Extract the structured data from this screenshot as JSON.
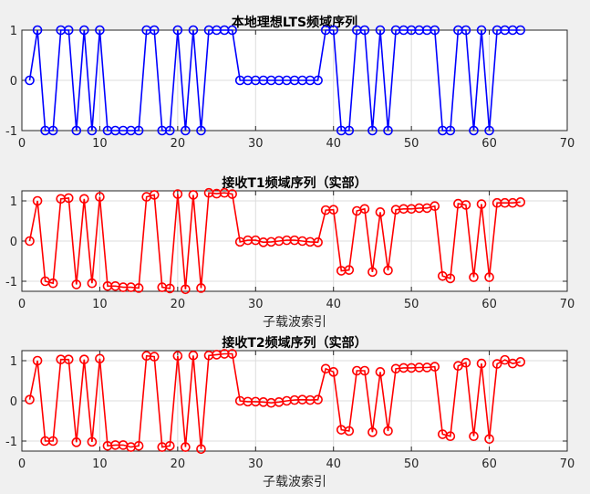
{
  "chart_data": [
    {
      "type": "line",
      "title": "本地理想LTS频域序列",
      "xlabel": "",
      "ylabel": "",
      "xlim": [
        0,
        70
      ],
      "ylim": [
        -1,
        1
      ],
      "xticks": [
        0,
        10,
        20,
        30,
        40,
        50,
        60,
        70
      ],
      "yticks": [
        -1,
        0,
        1
      ],
      "grid": true,
      "marker": "circle",
      "color": "#0000ff",
      "x": [
        1,
        2,
        3,
        4,
        5,
        6,
        7,
        8,
        9,
        10,
        11,
        12,
        13,
        14,
        15,
        16,
        17,
        18,
        19,
        20,
        21,
        22,
        23,
        24,
        25,
        26,
        27,
        28,
        29,
        30,
        31,
        32,
        33,
        34,
        35,
        36,
        37,
        38,
        39,
        40,
        41,
        42,
        43,
        44,
        45,
        46,
        47,
        48,
        49,
        50,
        51,
        52,
        53,
        54,
        55,
        56,
        57,
        58,
        59,
        60,
        61,
        62,
        63,
        64
      ],
      "y": [
        0,
        1,
        -1,
        -1,
        1,
        1,
        -1,
        1,
        -1,
        1,
        -1,
        -1,
        -1,
        -1,
        -1,
        1,
        1,
        -1,
        -1,
        1,
        -1,
        1,
        -1,
        1,
        1,
        1,
        1,
        0,
        0,
        0,
        0,
        0,
        0,
        0,
        0,
        0,
        0,
        0,
        1,
        1,
        -1,
        -1,
        1,
        1,
        -1,
        1,
        -1,
        1,
        1,
        1,
        1,
        1,
        1,
        -1,
        -1,
        1,
        1,
        -1,
        1,
        -1,
        1,
        1,
        1,
        1
      ]
    },
    {
      "type": "line",
      "title": "接收T1频域序列（实部）",
      "xlabel": "子载波索引",
      "ylabel": "",
      "xlim": [
        0,
        70
      ],
      "ylim": [
        -1.25,
        1.25
      ],
      "xticks": [
        0,
        10,
        20,
        30,
        40,
        50,
        60,
        70
      ],
      "yticks": [
        -1,
        0,
        1
      ],
      "grid": true,
      "marker": "circle",
      "color": "#ff0000",
      "x": [
        1,
        2,
        3,
        4,
        5,
        6,
        7,
        8,
        9,
        10,
        11,
        12,
        13,
        14,
        15,
        16,
        17,
        18,
        19,
        20,
        21,
        22,
        23,
        24,
        25,
        26,
        27,
        28,
        29,
        30,
        31,
        32,
        33,
        34,
        35,
        36,
        37,
        38,
        39,
        40,
        41,
        42,
        43,
        44,
        45,
        46,
        47,
        48,
        49,
        50,
        51,
        52,
        53,
        54,
        55,
        56,
        57,
        58,
        59,
        60,
        61,
        62,
        63,
        64
      ],
      "y": [
        0,
        1.0,
        -1.0,
        -1.05,
        1.05,
        1.07,
        -1.08,
        1.05,
        -1.05,
        1.1,
        -1.12,
        -1.12,
        -1.15,
        -1.15,
        -1.17,
        1.1,
        1.15,
        -1.15,
        -1.18,
        1.17,
        -1.2,
        1.15,
        -1.17,
        1.2,
        1.18,
        1.2,
        1.17,
        -0.02,
        0.02,
        0.02,
        -0.03,
        -0.02,
        0.0,
        0.02,
        0.02,
        0.0,
        -0.02,
        -0.03,
        0.77,
        0.78,
        -0.74,
        -0.72,
        0.75,
        0.8,
        -0.77,
        0.72,
        -0.73,
        0.78,
        0.8,
        0.8,
        0.82,
        0.82,
        0.87,
        -0.87,
        -0.93,
        0.93,
        0.9,
        -0.9,
        0.92,
        -0.9,
        0.95,
        0.95,
        0.95,
        0.97
      ]
    },
    {
      "type": "line",
      "title": "接收T2频域序列（实部）",
      "xlabel": "子载波索引",
      "ylabel": "",
      "xlim": [
        0,
        70
      ],
      "ylim": [
        -1.25,
        1.25
      ],
      "xticks": [
        0,
        10,
        20,
        30,
        40,
        50,
        60,
        70
      ],
      "yticks": [
        -1,
        0,
        1
      ],
      "grid": true,
      "marker": "circle",
      "color": "#ff0000",
      "x": [
        1,
        2,
        3,
        4,
        5,
        6,
        7,
        8,
        9,
        10,
        11,
        12,
        13,
        14,
        15,
        16,
        17,
        18,
        19,
        20,
        21,
        22,
        23,
        24,
        25,
        26,
        27,
        28,
        29,
        30,
        31,
        32,
        33,
        34,
        35,
        36,
        37,
        38,
        39,
        40,
        41,
        42,
        43,
        44,
        45,
        46,
        47,
        48,
        49,
        50,
        51,
        52,
        53,
        54,
        55,
        56,
        57,
        58,
        59,
        60,
        61,
        62,
        63,
        64
      ],
      "y": [
        0.03,
        1.0,
        -1.0,
        -1.0,
        1.03,
        1.03,
        -1.03,
        1.03,
        -1.02,
        1.05,
        -1.12,
        -1.1,
        -1.1,
        -1.15,
        -1.12,
        1.12,
        1.1,
        -1.15,
        -1.12,
        1.12,
        -1.15,
        1.13,
        -1.2,
        1.13,
        1.15,
        1.17,
        1.17,
        0.0,
        -0.02,
        -0.02,
        -0.03,
        -0.05,
        -0.03,
        0.0,
        0.02,
        0.03,
        0.02,
        0.03,
        0.8,
        0.72,
        -0.72,
        -0.75,
        0.75,
        0.75,
        -0.78,
        0.72,
        -0.75,
        0.8,
        0.82,
        0.82,
        0.83,
        0.83,
        0.85,
        -0.83,
        -0.88,
        0.87,
        0.95,
        -0.88,
        0.93,
        -0.95,
        0.92,
        1.02,
        0.93,
        0.97
      ]
    }
  ]
}
